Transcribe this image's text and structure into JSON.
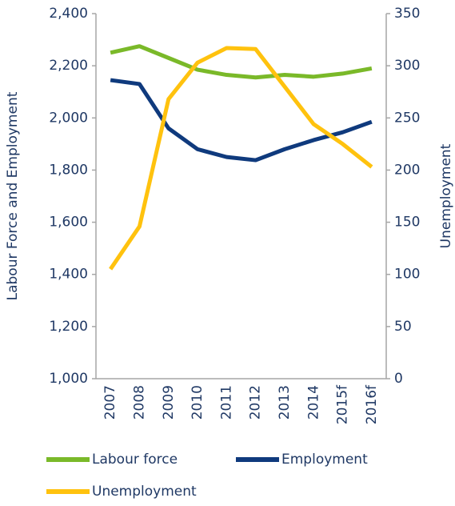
{
  "chart_data": {
    "type": "line",
    "y_label": "Labour Force and Employment",
    "y2_label": "Unemployment",
    "categories": [
      "2007",
      "2008",
      "2009",
      "2010",
      "2011",
      "2012",
      "2013",
      "2014",
      "2015f",
      "2016f"
    ],
    "series": [
      {
        "name": "Labour force",
        "color": "#7ab929",
        "values": [
          2250,
          2275,
          2230,
          2185,
          2165,
          2155,
          2165,
          2158,
          2170,
          2190
        ]
      },
      {
        "name": "Employment",
        "color": "#0f3a7d",
        "values": [
          2145,
          2130,
          1960,
          1880,
          1850,
          1838,
          1880,
          1915,
          1945,
          1985
        ]
      },
      {
        "name": "Unemployment",
        "color": "#ffc20e",
        "axis": "y2",
        "values": [
          105,
          146,
          268,
          303,
          317,
          316,
          280,
          244,
          225,
          203
        ]
      }
    ],
    "ylim": [
      1000,
      2400
    ],
    "yticks": [
      {
        "value": 1000,
        "label": "1,000"
      },
      {
        "value": 1200,
        "label": "1,200"
      },
      {
        "value": 1400,
        "label": "1,400"
      },
      {
        "value": 1600,
        "label": "1,600"
      },
      {
        "value": 1800,
        "label": "1,800"
      },
      {
        "value": 2000,
        "label": "2,000"
      },
      {
        "value": 2200,
        "label": "2,200"
      },
      {
        "value": 2400,
        "label": "2,400"
      }
    ],
    "y2lim": [
      0,
      350
    ],
    "y2ticks": [
      0,
      50,
      100,
      150,
      200,
      250,
      300,
      350
    ],
    "grid": false
  }
}
